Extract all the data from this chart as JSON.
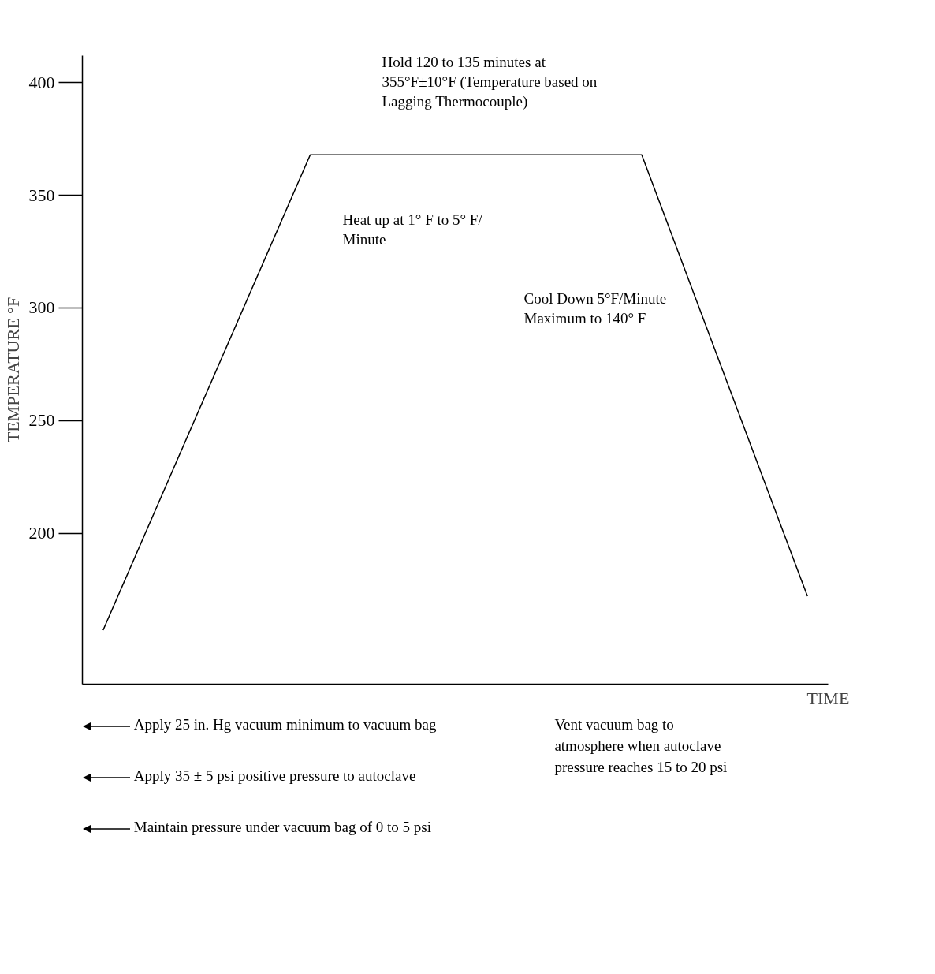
{
  "chart_data": {
    "type": "line",
    "ylabel": "TEMPERATURE °F",
    "xlabel": "TIME",
    "categories": [
      null,
      null,
      null,
      null,
      null,
      null,
      null,
      null,
      null,
      null,
      null,
      null,
      null,
      null,
      null,
      null,
      null,
      null
    ],
    "values": [
      157,
      null,
      null,
      null,
      null,
      368,
      null,
      null,
      null,
      null,
      null,
      null,
      null,
      368,
      null,
      null,
      null,
      172
    ],
    "color": "#000000",
    "ylim": [
      133,
      412
    ],
    "yticks": [
      200,
      250,
      300,
      350,
      400
    ],
    "tick_labels": "y",
    "grid": false,
    "marker": "none",
    "line_style": "solid",
    "annotations": [
      "Hold 120 to 135 minutes at 355°F±10°F (Temperature based on Lagging Thermocouple)",
      "Heat up at 1° F to 5° F/ Minute",
      "Cool Down 5°F/Minute Maximum to 140° F",
      "Apply 25 in. Hg vacuum minimum to vacuum bag",
      "Apply 35 ± 5 psi positive pressure to autoclave",
      "Maintain pressure under vacuum bag of 0 to 5 psi",
      "Vent vacuum bag to atmosphere when autoclave pressure reaches 15 to 20 psi"
    ]
  }
}
